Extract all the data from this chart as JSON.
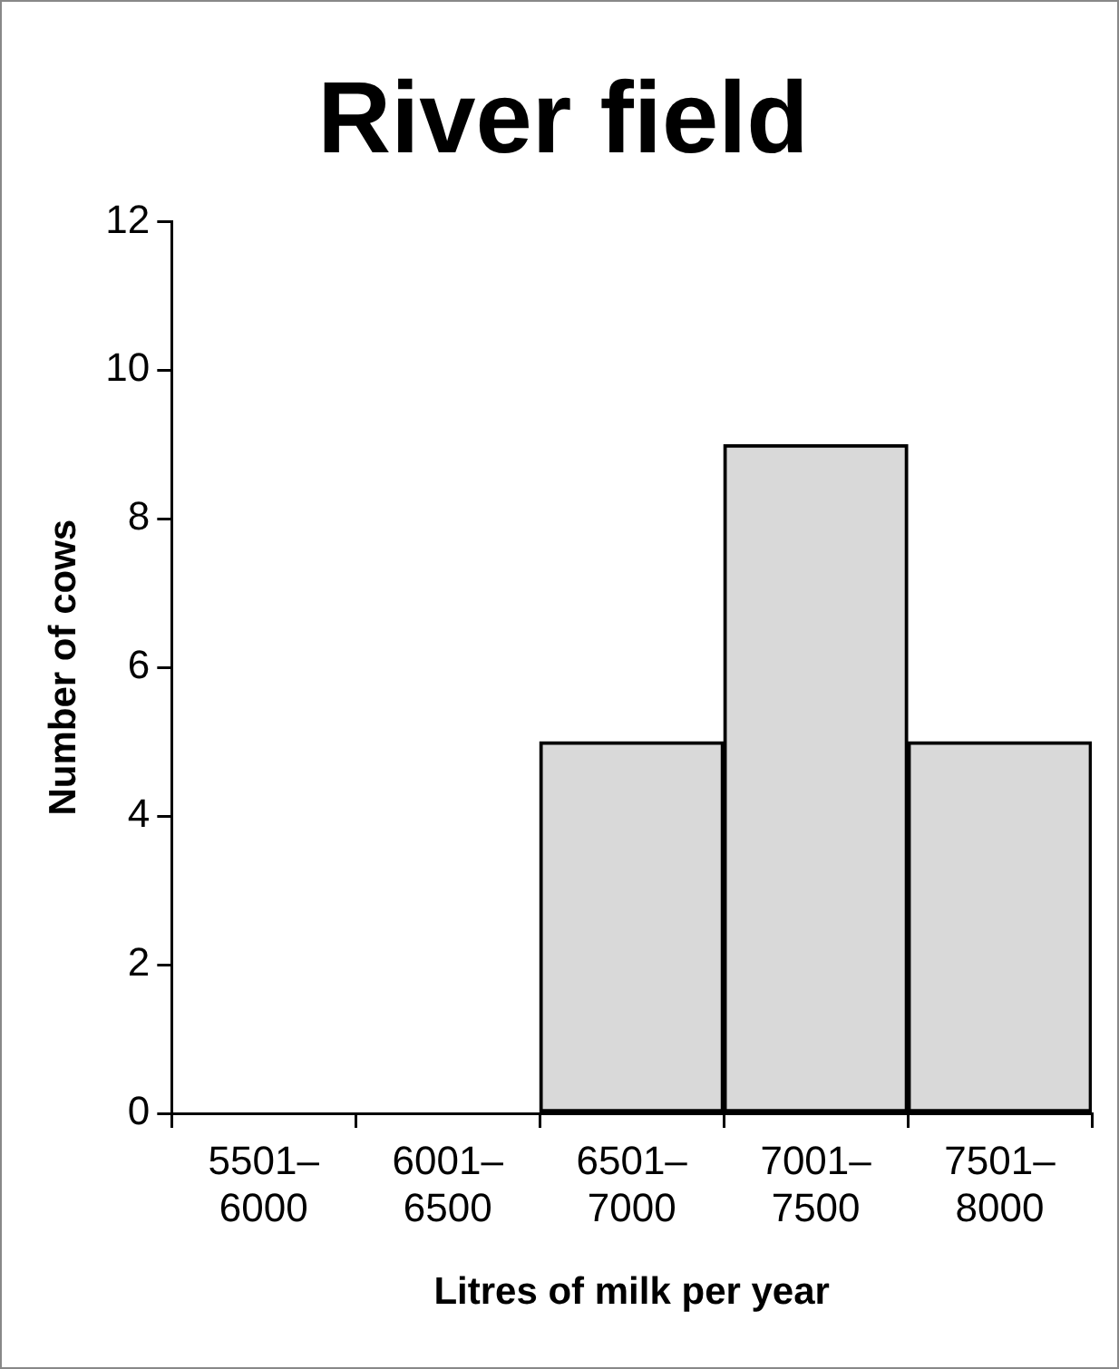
{
  "chart_data": {
    "type": "bar",
    "title": "River field",
    "xlabel": "Litres of milk per year",
    "ylabel": "Number of cows",
    "categories": [
      "5501–6000",
      "6001–6500",
      "6501–7000",
      "7001–7500",
      "7501–8000"
    ],
    "values": [
      0,
      0,
      5,
      9,
      5
    ],
    "color": "#d9d9d9",
    "ylim": [
      0,
      12
    ],
    "yticks": [
      0,
      2,
      4,
      6,
      8,
      10,
      12
    ],
    "grid": false,
    "legend": false
  }
}
